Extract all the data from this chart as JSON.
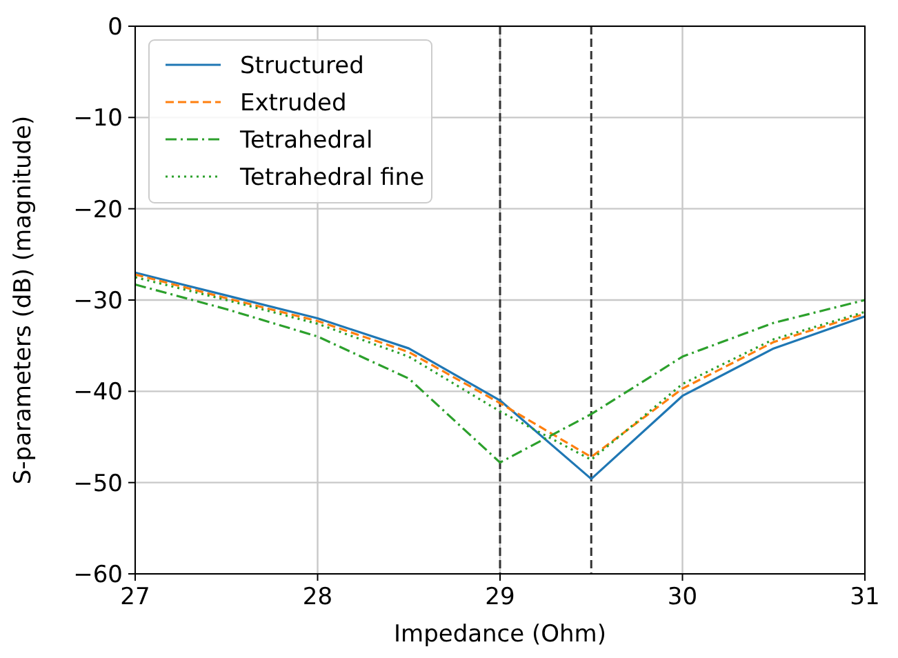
{
  "chart_data": {
    "type": "line",
    "xlabel": "Impedance (Ohm)",
    "ylabel": "S-parameters (dB) (magnitude)",
    "x": [
      27,
      27.5,
      28,
      28.5,
      29,
      29.5,
      30,
      30.5,
      31
    ],
    "series": [
      {
        "name": "Structured",
        "color": "#1f77b4",
        "line_style": "solid",
        "values": [
          -27.0,
          -29.5,
          -32.0,
          -35.3,
          -41.0,
          -49.6,
          -40.5,
          -35.3,
          -31.8
        ]
      },
      {
        "name": "Extruded",
        "color": "#ff7f0e",
        "line_style": "dashed",
        "values": [
          -27.2,
          -29.8,
          -32.3,
          -35.7,
          -41.3,
          -47.2,
          -39.7,
          -34.6,
          -31.5
        ]
      },
      {
        "name": "Tetrahedral",
        "color": "#2ca02c",
        "line_style": "dashdot",
        "values": [
          -28.3,
          -31.0,
          -34.0,
          -38.6,
          -47.8,
          -42.5,
          -36.2,
          -32.5,
          -30.0
        ]
      },
      {
        "name": "Tetrahedral fine",
        "color": "#2ca02c",
        "line_style": "dotted",
        "values": [
          -27.5,
          -30.0,
          -32.6,
          -36.2,
          -42.2,
          -47.5,
          -39.2,
          -34.3,
          -31.3
        ]
      }
    ],
    "xlim": [
      27,
      31
    ],
    "xticks": [
      27,
      28,
      29,
      30,
      31
    ],
    "ylim": [
      -60,
      0
    ],
    "yticks": [
      {
        "value": -60,
        "label": "−60"
      },
      {
        "value": -50,
        "label": "−50"
      },
      {
        "value": -40,
        "label": "−40"
      },
      {
        "value": -30,
        "label": "−30"
      },
      {
        "value": -20,
        "label": "−20"
      },
      {
        "value": -10,
        "label": "−10"
      },
      0
    ],
    "ref_lines": [
      {
        "axis": "x",
        "value": 29,
        "color": "#333333",
        "line_style": "dashed"
      },
      {
        "axis": "x",
        "value": 29.5,
        "color": "#333333",
        "line_style": "dashed"
      }
    ],
    "grid": true,
    "legend": "top left"
  }
}
